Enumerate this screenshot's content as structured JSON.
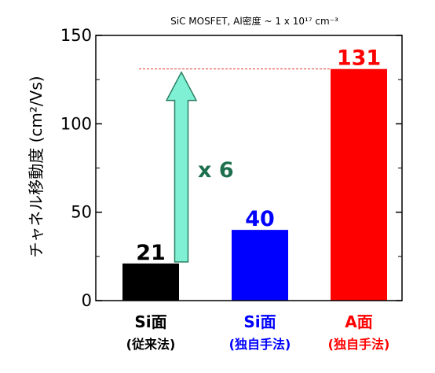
{
  "chart_data": {
    "type": "bar",
    "title": "SiC MOSFET, Al密度 ~ 1 x 10¹⁷ cm⁻³",
    "ylabel": "チャネル移動度 (cm²/Vs)",
    "ylim": [
      0,
      150
    ],
    "yticks": [
      "0",
      "50",
      "100",
      "150"
    ],
    "yticks_values": [
      0,
      50,
      100,
      150
    ],
    "categories": [
      {
        "line1": "Si面",
        "line2": "(従来法)"
      },
      {
        "line1": "Si面",
        "line2": "(独自手法)"
      },
      {
        "line1": "A面",
        "line2": "(独自手法)"
      }
    ],
    "values": [
      21,
      40,
      131
    ],
    "data_labels": [
      "21",
      "40",
      "131"
    ],
    "colors": [
      "#000000",
      "#0000ff",
      "#ff0000"
    ],
    "category_label_colors": [
      "#000000",
      "#0000ff",
      "#ff0000"
    ],
    "reference_line": {
      "y": 131,
      "color": "#e53935"
    },
    "arrow": {
      "from": 21,
      "to": 131,
      "fill": "#7ff0d4",
      "stroke": "#2a7f62"
    },
    "annotation": {
      "text": "x 6",
      "color": "#1e6f4e"
    },
    "grid": false
  }
}
